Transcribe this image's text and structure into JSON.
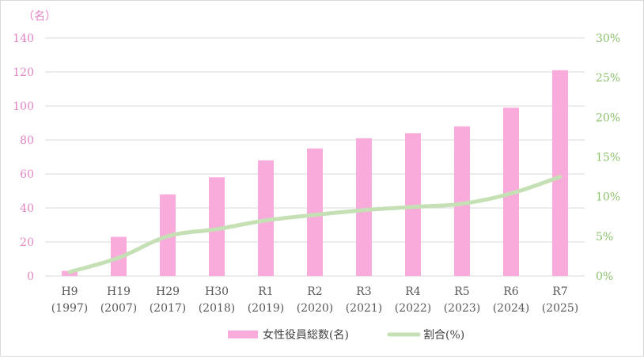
{
  "chart_data": {
    "type": "bar",
    "categories": [
      {
        "era": "H9",
        "year": "(1997)"
      },
      {
        "era": "H19",
        "year": "(2007)"
      },
      {
        "era": "H29",
        "year": "(2017)"
      },
      {
        "era": "H30",
        "year": "(2018)"
      },
      {
        "era": "R1",
        "year": "(2019)"
      },
      {
        "era": "R2",
        "year": "(2020)"
      },
      {
        "era": "R3",
        "year": "(2021)"
      },
      {
        "era": "R4",
        "year": "(2022)"
      },
      {
        "era": "R5",
        "year": "(2023)"
      },
      {
        "era": "R6",
        "year": "(2024)"
      },
      {
        "era": "R7",
        "year": "(2025)"
      }
    ],
    "series": [
      {
        "name": "女性役員総数(名)",
        "type": "bar",
        "axis": "left",
        "color": "#f9abdc",
        "values": [
          3,
          23,
          48,
          58,
          68,
          75,
          81,
          84,
          88,
          99,
          121
        ]
      },
      {
        "name": "割合(%)",
        "type": "line",
        "axis": "right",
        "color": "#c5e0b4",
        "values": [
          0.5,
          2.3,
          5.0,
          5.9,
          7.0,
          7.7,
          8.3,
          8.7,
          9.1,
          10.4,
          12.5
        ]
      }
    ],
    "yunit_left": "（名）",
    "ylim_left": [
      0,
      140
    ],
    "yticks_left": [
      "0",
      "20",
      "40",
      "60",
      "80",
      "100",
      "120",
      "140"
    ],
    "ylim_right": [
      0,
      30
    ],
    "yticks_right": [
      "0%",
      "5%",
      "10%",
      "15%",
      "20%",
      "25%",
      "30%"
    ],
    "grid": true,
    "legend_position": "bottom",
    "left_axis_color": "#e384c4",
    "right_axis_color": "#8cc06c"
  }
}
